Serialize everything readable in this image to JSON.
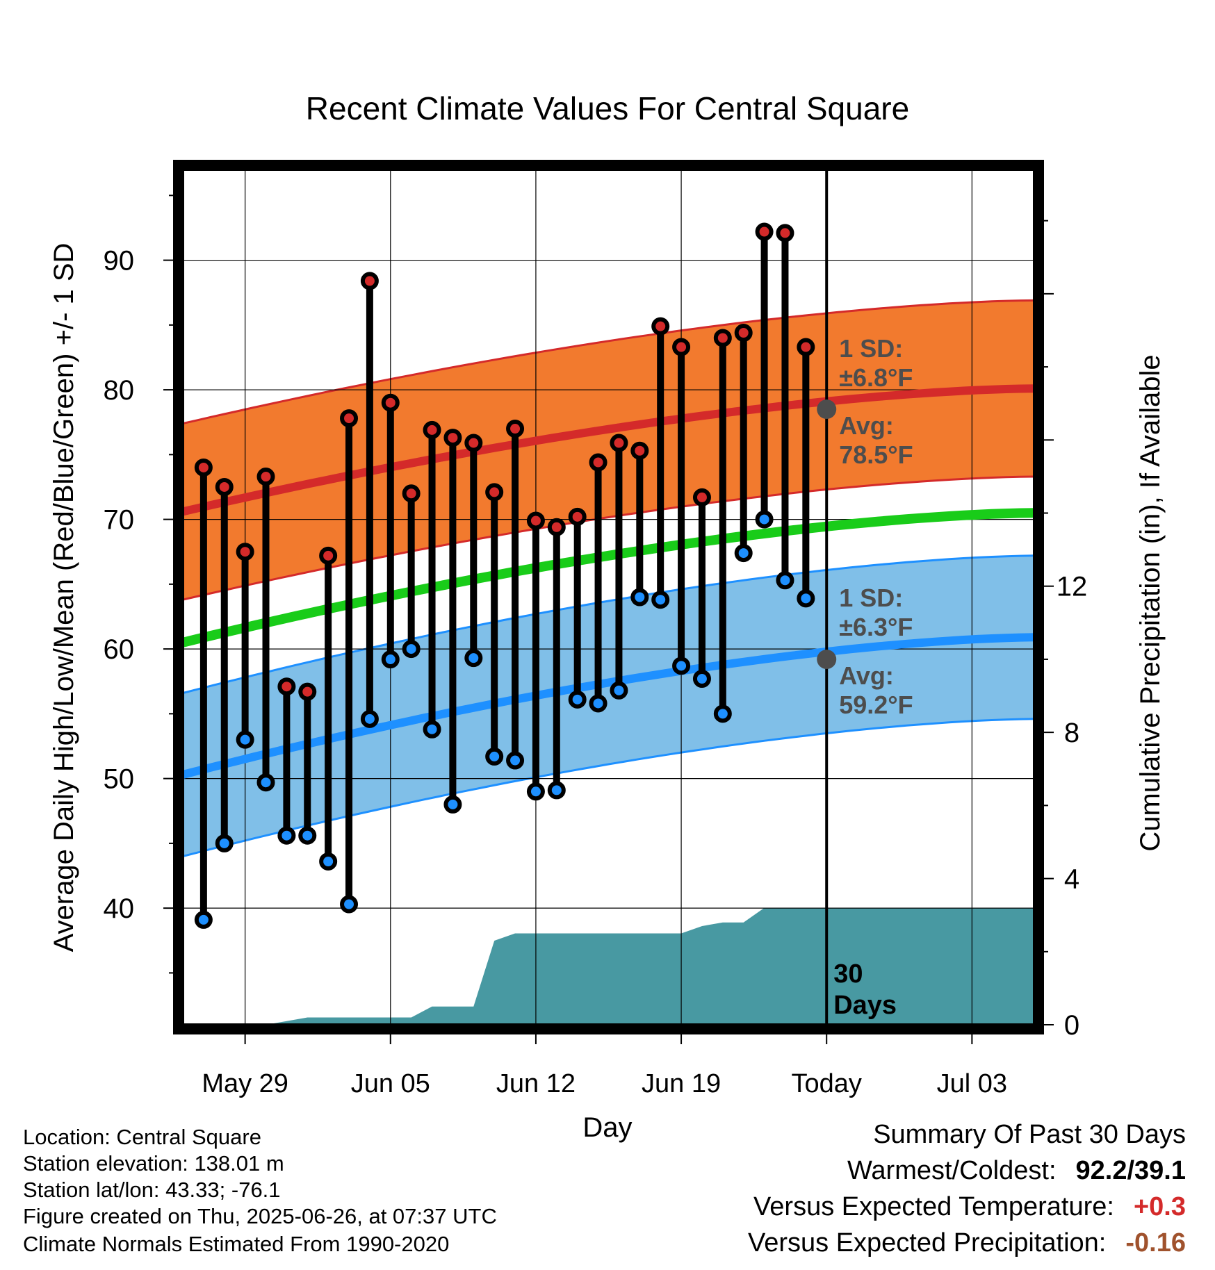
{
  "chart_data": {
    "type": "line",
    "title": "Recent Climate Values For Central Square",
    "xlabel": "Day",
    "ylabel": "Average Daily High/Low/Mean (Red/Blue/Green) +/- 1 SD",
    "y2label": "Cumulative Precipitation (in), If Available",
    "x_tick_labels": [
      "May 29",
      "Jun 05",
      "Jun 12",
      "Jun 19",
      "Today",
      "Jul 03"
    ],
    "y_ticks": [
      40,
      50,
      60,
      70,
      80,
      90
    ],
    "y2_ticks": [
      0,
      4,
      8,
      12
    ],
    "ylim": [
      31,
      97
    ],
    "y2lim": [
      0,
      23.4
    ],
    "x_range_days": [
      "2025-05-26",
      "2025-07-06"
    ],
    "today": "2025-06-26",
    "grid": true,
    "days": [
      "2025-05-27",
      "2025-05-28",
      "2025-05-29",
      "2025-05-30",
      "2025-05-31",
      "2025-06-01",
      "2025-06-02",
      "2025-06-03",
      "2025-06-04",
      "2025-06-05",
      "2025-06-06",
      "2025-06-07",
      "2025-06-08",
      "2025-06-09",
      "2025-06-10",
      "2025-06-11",
      "2025-06-12",
      "2025-06-13",
      "2025-06-14",
      "2025-06-15",
      "2025-06-16",
      "2025-06-17",
      "2025-06-18",
      "2025-06-19",
      "2025-06-20",
      "2025-06-21",
      "2025-06-22",
      "2025-06-23",
      "2025-06-24",
      "2025-06-25"
    ],
    "highs": [
      74.0,
      72.5,
      67.5,
      73.3,
      57.1,
      56.7,
      67.2,
      77.8,
      88.4,
      79.0,
      72.0,
      76.9,
      76.3,
      75.9,
      72.1,
      77.0,
      69.9,
      69.4,
      70.2,
      74.4,
      75.9,
      75.3,
      84.9,
      83.3,
      71.7,
      84.0,
      84.4,
      92.2,
      92.1,
      83.3
    ],
    "lows": [
      39.1,
      45.0,
      53.0,
      49.7,
      45.6,
      45.6,
      43.6,
      40.3,
      54.6,
      59.2,
      60.0,
      53.8,
      48.0,
      59.3,
      51.7,
      51.4,
      49.0,
      49.1,
      56.1,
      55.8,
      56.8,
      64.0,
      63.8,
      58.7,
      57.7,
      55.0,
      67.4,
      70.0,
      65.3,
      63.9
    ],
    "normal_high": {
      "start": 70.6,
      "end": 80.1,
      "avg_today": 78.5,
      "sd": 6.8
    },
    "normal_low": {
      "start": 50.3,
      "end": 60.9,
      "avg_today": 59.2,
      "sd": 6.3
    },
    "normal_mean": {
      "start": 60.5,
      "end": 70.5
    },
    "precip_cum": [
      [
        1,
        0
      ],
      [
        2,
        0
      ],
      [
        3,
        0
      ],
      [
        4,
        0
      ],
      [
        5,
        0.1
      ],
      [
        6,
        0.2
      ],
      [
        7,
        0.2
      ],
      [
        8,
        0.2
      ],
      [
        9,
        0.2
      ],
      [
        10,
        0.2
      ],
      [
        11,
        0.2
      ],
      [
        12,
        0.5
      ],
      [
        13,
        0.5
      ],
      [
        14,
        0.5
      ],
      [
        15,
        2.3
      ],
      [
        16,
        2.5
      ],
      [
        17,
        2.5
      ],
      [
        18,
        2.5
      ],
      [
        19,
        2.5
      ],
      [
        20,
        2.5
      ],
      [
        21,
        2.5
      ],
      [
        22,
        2.5
      ],
      [
        23,
        2.5
      ],
      [
        24,
        2.5
      ],
      [
        25,
        2.7
      ],
      [
        26,
        2.8
      ],
      [
        27,
        2.8
      ],
      [
        28,
        3.2
      ],
      [
        29,
        3.2
      ],
      [
        31,
        3.2
      ],
      [
        42,
        3.2
      ]
    ],
    "colors": {
      "high": "#d42a2a",
      "low": "#1e90ff",
      "mean": "#19cc19",
      "high_band": "#f27a2e",
      "low_band": "#80bfe8",
      "precip": "#4899a2",
      "annotation": "#4d4d4d"
    },
    "annotations": {
      "high_sd_label": "1 SD:",
      "high_sd_value": "±6.8°F",
      "high_avg_label": "Avg:",
      "high_avg_value": "78.5°F",
      "low_sd_label": "1 SD:",
      "low_sd_value": "±6.3°F",
      "low_avg_label": "Avg:",
      "low_avg_value": "59.2°F",
      "days_line1": "30",
      "days_line2": "Days"
    }
  },
  "meta": {
    "location": "Location: Central Square",
    "elevation": "Station elevation: 138.01 m",
    "latlon": "Station lat/lon: 43.33; -76.1",
    "created": "Figure created on Thu, 2025-06-26, at 07:37 UTC",
    "normals": "Climate Normals Estimated From 1990-2020"
  },
  "summary": {
    "title": "Summary Of Past 30 Days",
    "warm_cold_label": "Warmest/Coldest:",
    "warm_cold_value": "92.2/39.1",
    "temp_label": "Versus Expected Temperature:",
    "temp_value": "+0.3",
    "temp_color": "#d42a2a",
    "precip_label": "Versus Expected Precipitation:",
    "precip_value": "-0.16",
    "precip_color": "#a0522d"
  }
}
